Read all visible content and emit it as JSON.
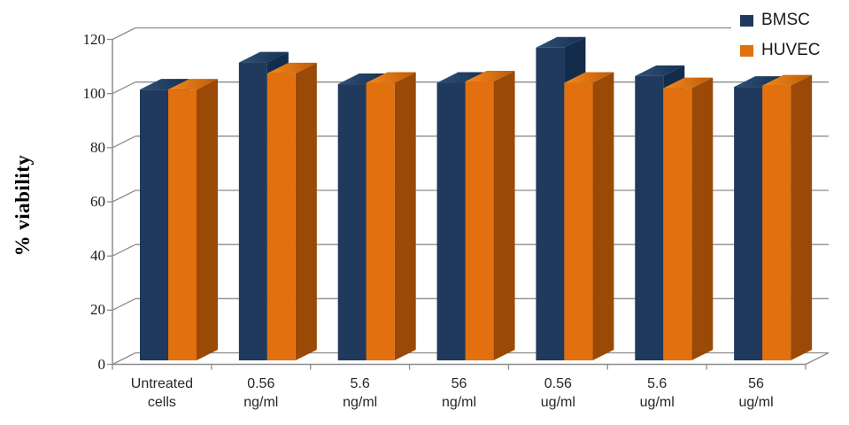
{
  "chart_data": {
    "type": "bar",
    "style": "3d-clustered-column",
    "title": "",
    "xlabel": "",
    "ylabel": "% viability",
    "categories": [
      "Untreated cells",
      "0.56 ng/ml",
      "5.6 ng/ml",
      "56 ng/ml",
      "0.56 ug/ml",
      "5.6 ug/ml",
      "56 ug/ml"
    ],
    "series": [
      {
        "name": "BMSC",
        "values": [
          100,
          110,
          102,
          102.5,
          115.5,
          105,
          101
        ],
        "color": "#1F3A5C",
        "faces": {
          "front": "#1F3A5C",
          "topLight": "#2E5178",
          "topDark": "#16304F",
          "side": "#142C4B"
        }
      },
      {
        "name": "HUVEC",
        "values": [
          100,
          106,
          102.5,
          103,
          102.5,
          100.5,
          101.5
        ],
        "color": "#E2700E",
        "faces": {
          "front": "#E2700E",
          "topLight": "#F5891F",
          "topDark": "#BC5B07",
          "side": "#9A4A06"
        }
      }
    ],
    "y_ticks": [
      0,
      20,
      40,
      60,
      80,
      100,
      120
    ],
    "ylim": [
      0,
      120
    ],
    "grid": true,
    "legend_position": "top-right"
  },
  "palette": {
    "gridline": "#8C8C8C",
    "axis": "#7F7F7F",
    "tick_text": "#1A1A1A",
    "category_text": "#262626",
    "background": "#FFFFFF"
  }
}
